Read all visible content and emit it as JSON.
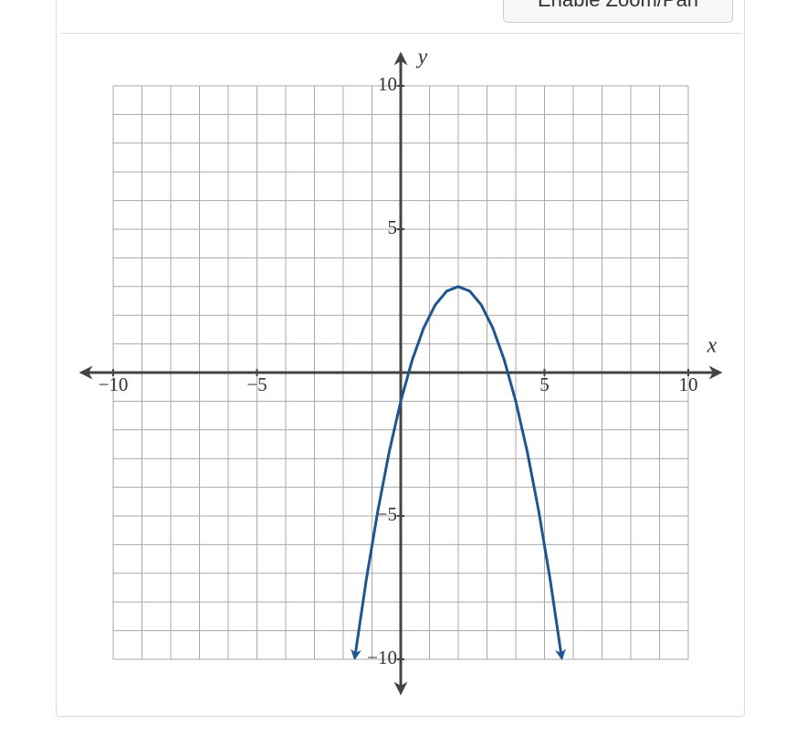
{
  "button": {
    "label": "Enable Zoom/Pan"
  },
  "chart_data": {
    "type": "line",
    "x_label": "x",
    "y_label": "y",
    "xlim": [
      -10,
      10
    ],
    "ylim": [
      -10,
      10
    ],
    "xticks": [
      {
        "value": -10,
        "label": "−10"
      },
      {
        "value": -5,
        "label": "−5"
      },
      5,
      10
    ],
    "yticks": [
      {
        "value": -10,
        "label": "−10"
      },
      {
        "value": -5,
        "label": "−5"
      },
      5,
      10
    ],
    "grid": true,
    "grid_step": 1,
    "series": [
      {
        "color": "#1f5591",
        "x": [
          -1.6,
          -1.2,
          -0.8,
          -0.4,
          0,
          0.4,
          0.8,
          1.2,
          1.6,
          2.0,
          2.4,
          2.8,
          3.2,
          3.6,
          4.0,
          4.4,
          4.8,
          5.2,
          5.6
        ],
        "values": [
          -9.96,
          -7.24,
          -4.84,
          -2.76,
          -1,
          0.44,
          1.56,
          2.36,
          2.84,
          3,
          2.84,
          2.36,
          1.56,
          0.44,
          -1,
          -2.76,
          -4.84,
          -7.24,
          -9.96
        ]
      }
    ]
  }
}
